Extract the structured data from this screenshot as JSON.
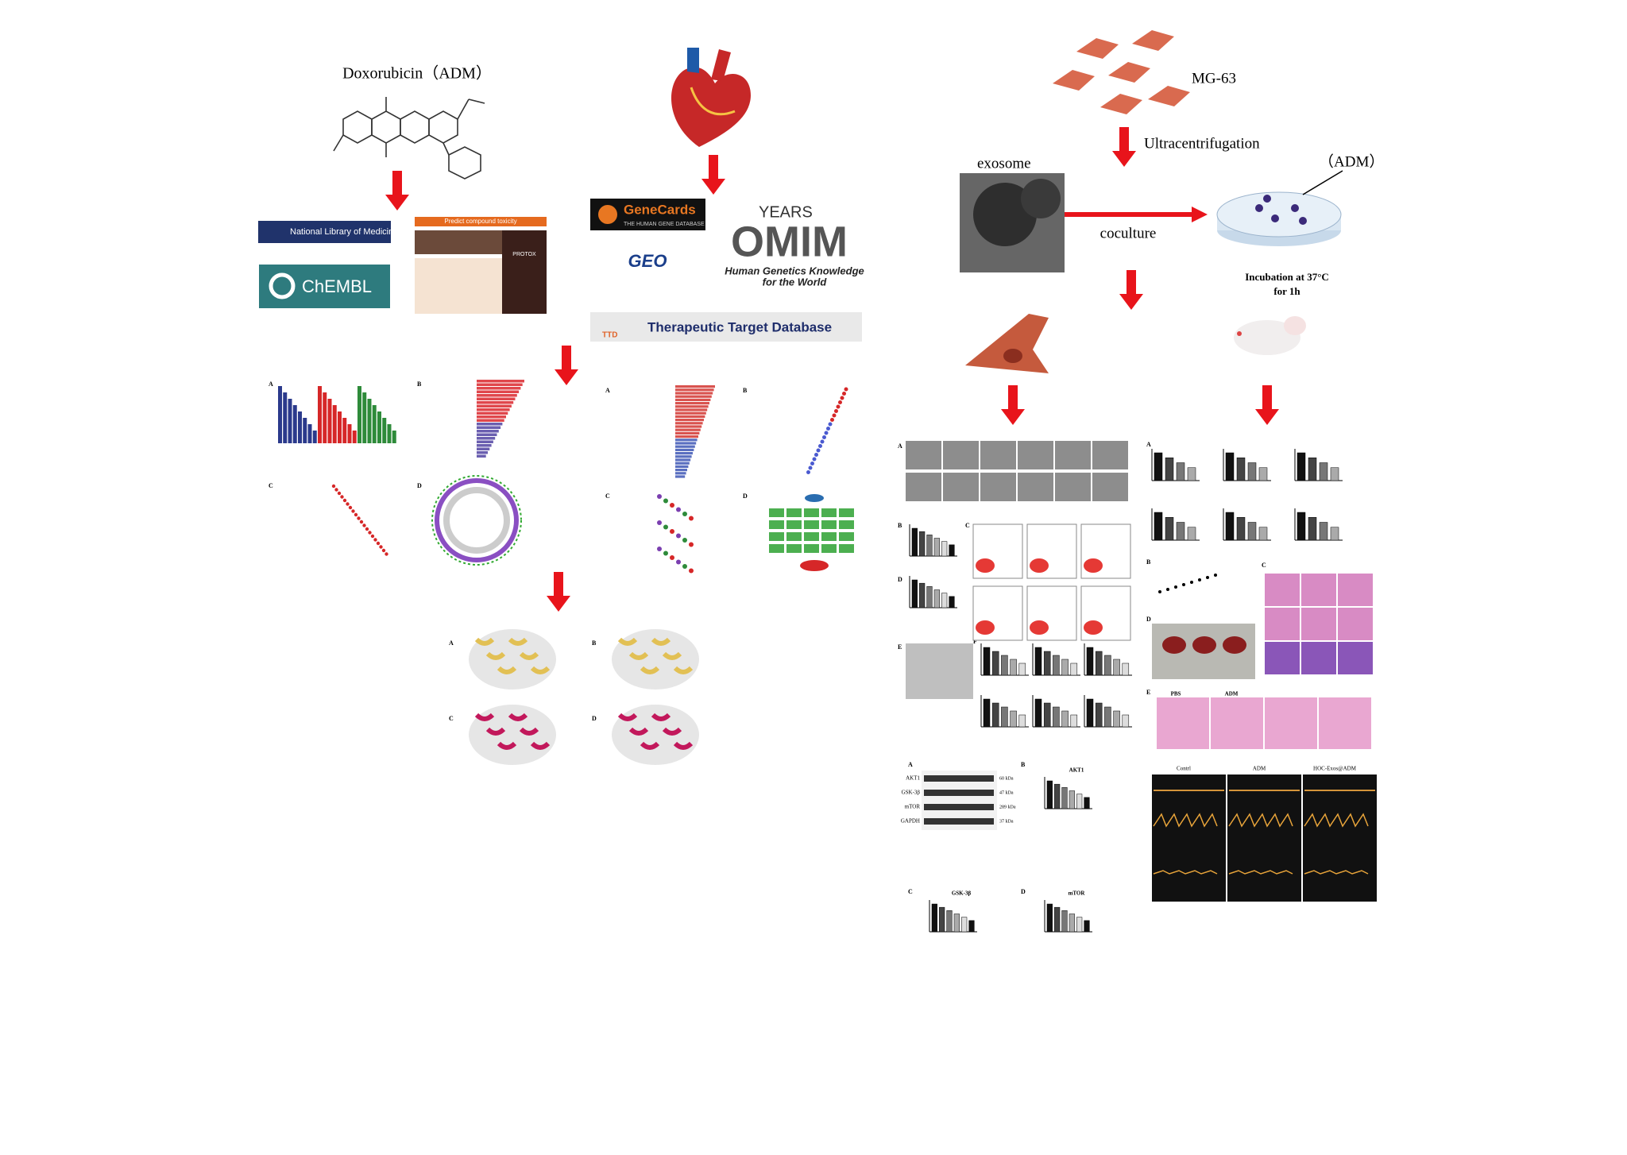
{
  "left": {
    "drug": "Doxorubicin（ADM）",
    "compound_databases": [
      "National Library of Medicine",
      "ChEMBL",
      "Predict compound toxicity",
      "PROTOX"
    ],
    "target_databases": [
      "GeneCards",
      "THE HUMAN GENE DATABASE",
      "GEO",
      "YEARS",
      "OMIM",
      "Human Genetics Knowledge",
      "for the World",
      "TTD",
      "Therapeutic Target Database"
    ]
  },
  "right": {
    "cell_line": "MG-63",
    "step": "Ultracentrifugation",
    "drug": "（ADM）",
    "exosome": "exosome",
    "coculture": "coculture",
    "incubation": [
      "Incubation  at 37°C",
      "for   1h"
    ]
  },
  "panel_letters": [
    "A",
    "B",
    "C",
    "D",
    "E",
    "F"
  ],
  "western": {
    "proteins": [
      "AKT1",
      "GSK-3β",
      "mTOR",
      "GAPDH"
    ],
    "sizes": [
      "60 kDa",
      "47 kDa",
      "289 kDa",
      "37 kDa"
    ]
  },
  "echo": [
    "Contrl",
    "ADM",
    "HOC-Exos@ADM"
  ],
  "histology": [
    "PBS",
    "ADM"
  ]
}
